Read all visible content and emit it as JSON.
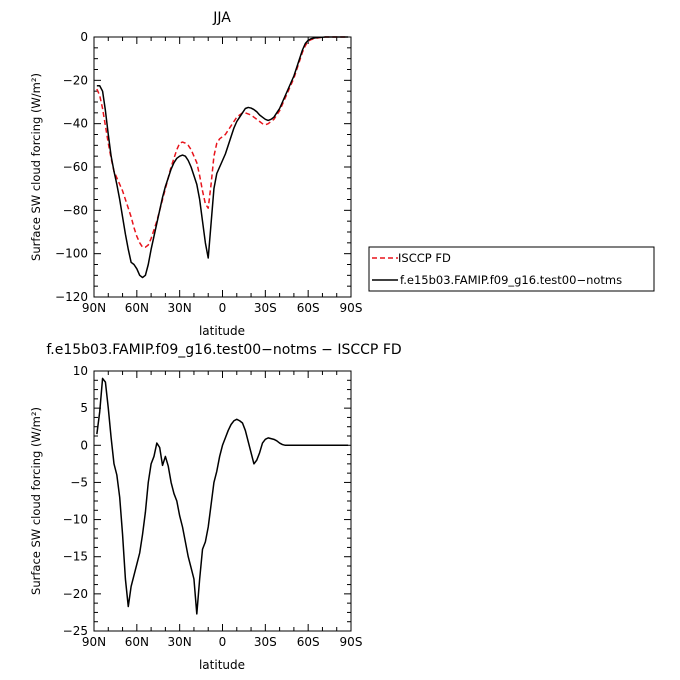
{
  "chart_data": [
    {
      "type": "line",
      "title": "JJA",
      "xlabel": "latitude",
      "ylabel": "Surface SW cloud forcing (W/m²)",
      "xlim": [
        90,
        -90
      ],
      "ylim": [
        -120,
        0
      ],
      "xticks": [
        90,
        60,
        30,
        0,
        -30,
        -60,
        -90
      ],
      "xtick_labels": [
        "90N",
        "60N",
        "30N",
        "0",
        "30S",
        "60S",
        "90S"
      ],
      "yticks": [
        0,
        -20,
        -40,
        -60,
        -80,
        -100,
        -120
      ],
      "ytick_labels": [
        "0",
        "−20",
        "−40",
        "−60",
        "−80",
        "−100",
        "−120"
      ],
      "legend": "right",
      "series": [
        {
          "name": "ISCCP FD",
          "color": "#e8141c",
          "dash": true,
          "x": [
            88,
            86,
            84,
            82,
            80,
            78,
            76,
            74,
            72,
            70,
            68,
            66,
            64,
            62,
            60,
            58,
            56,
            54,
            52,
            50,
            48,
            46,
            44,
            42,
            40,
            38,
            36,
            34,
            32,
            30,
            28,
            26,
            24,
            22,
            20,
            18,
            16,
            14,
            12,
            10,
            8,
            6,
            4,
            2,
            0,
            -2,
            -4,
            -6,
            -8,
            -10,
            -12,
            -14,
            -16,
            -18,
            -20,
            -22,
            -24,
            -26,
            -28,
            -30,
            -32,
            -34,
            -36,
            -38,
            -40,
            -42,
            -44,
            -46,
            -48,
            -50,
            -52,
            -54,
            -56,
            -58,
            -60,
            -62,
            -64,
            -66,
            -68,
            -70,
            -72,
            -74,
            -76,
            -78,
            -80,
            -82,
            -84,
            -86,
            -88
          ],
          "values": [
            -24,
            -27,
            -33,
            -41,
            -49,
            -56,
            -62,
            -65,
            -68,
            -71,
            -75,
            -79,
            -83,
            -88,
            -92,
            -95,
            -97,
            -97,
            -96,
            -93,
            -89,
            -85,
            -80,
            -75,
            -70,
            -65,
            -60,
            -56,
            -52,
            -49,
            -48.5,
            -49,
            -50,
            -52,
            -55,
            -58,
            -64,
            -71,
            -77,
            -79,
            -68,
            -55,
            -49,
            -47,
            -46,
            -45,
            -43,
            -41,
            -39,
            -37,
            -36,
            -35,
            -35,
            -35.5,
            -36,
            -37,
            -38,
            -39,
            -40,
            -40.5,
            -40,
            -39,
            -38,
            -36,
            -34,
            -31,
            -28,
            -25,
            -22,
            -19,
            -15,
            -11,
            -7,
            -4,
            -2,
            -1.2,
            -0.8,
            -0.5,
            -0.3,
            -0.1,
            0,
            0,
            0,
            0,
            0,
            0,
            0,
            0,
            0
          ]
        },
        {
          "name": "f.e15b03.FAMIP.f09_g16.test00−notms",
          "color": "#000000",
          "dash": false,
          "x": [
            88,
            86,
            84,
            82,
            80,
            78,
            76,
            74,
            72,
            70,
            68,
            66,
            64,
            62,
            60,
            58,
            56,
            54,
            52,
            50,
            48,
            46,
            44,
            42,
            40,
            38,
            36,
            34,
            32,
            30,
            28,
            26,
            24,
            22,
            20,
            18,
            16,
            14,
            12,
            10,
            8,
            6,
            4,
            2,
            0,
            -2,
            -4,
            -6,
            -8,
            -10,
            -12,
            -14,
            -16,
            -18,
            -20,
            -22,
            -24,
            -26,
            -28,
            -30,
            -32,
            -34,
            -36,
            -38,
            -40,
            -42,
            -44,
            -46,
            -48,
            -50,
            -52,
            -54,
            -56,
            -58,
            -60,
            -62,
            -64,
            -66,
            -68,
            -70,
            -72,
            -74,
            -76,
            -78,
            -80,
            -82,
            -84,
            -86,
            -88
          ],
          "values": [
            -22.5,
            -22.5,
            -25,
            -34,
            -45,
            -55,
            -62,
            -68,
            -75,
            -83,
            -91,
            -98,
            -104,
            -105,
            -107,
            -110,
            -111,
            -110,
            -105,
            -98,
            -92,
            -86,
            -80,
            -74,
            -69,
            -65,
            -61,
            -58,
            -56,
            -55,
            -54.5,
            -55,
            -57,
            -60,
            -64,
            -68,
            -75,
            -85,
            -95,
            -102,
            -86,
            -70,
            -63,
            -60,
            -57,
            -54,
            -50,
            -46,
            -42,
            -39,
            -37,
            -35,
            -33,
            -32.5,
            -32.8,
            -33.5,
            -34.5,
            -36,
            -37,
            -38,
            -38.5,
            -38,
            -37,
            -35,
            -33,
            -30,
            -27,
            -24,
            -21,
            -18,
            -14,
            -10,
            -6,
            -3,
            -1.5,
            -0.8,
            -0.5,
            -0.3,
            -0.2,
            -0.1,
            0,
            0,
            0,
            0,
            0,
            0,
            0,
            0,
            0
          ]
        }
      ]
    },
    {
      "type": "line",
      "title": "f.e15b03.FAMIP.f09_g16.test00−notms − ISCCP FD",
      "xlabel": "latitude",
      "ylabel": "Surface SW cloud forcing (W/m²)",
      "xlim": [
        90,
        -90
      ],
      "ylim": [
        -25,
        10
      ],
      "xticks": [
        90,
        60,
        30,
        0,
        -30,
        -60,
        -90
      ],
      "xtick_labels": [
        "90N",
        "60N",
        "30N",
        "0",
        "30S",
        "60S",
        "90S"
      ],
      "yticks": [
        10,
        5,
        0,
        -5,
        -10,
        -15,
        -20,
        -25
      ],
      "ytick_labels": [
        "10",
        "5",
        "0",
        "−5",
        "−10",
        "−15",
        "−20",
        "−25"
      ],
      "series": [
        {
          "color": "#000000",
          "x": [
            88,
            86,
            84,
            82,
            80,
            78,
            76,
            74,
            72,
            70,
            68,
            66,
            64,
            62,
            60,
            58,
            56,
            54,
            52,
            50,
            48,
            46,
            44,
            42,
            40,
            38,
            36,
            34,
            32,
            30,
            28,
            26,
            24,
            22,
            20,
            18,
            16,
            14,
            12,
            10,
            8,
            6,
            4,
            2,
            0,
            -2,
            -4,
            -6,
            -8,
            -10,
            -12,
            -14,
            -16,
            -18,
            -20,
            -22,
            -24,
            -26,
            -28,
            -30,
            -32,
            -34,
            -36,
            -38,
            -40,
            -42,
            -44,
            -46,
            -48,
            -50,
            -52,
            -54,
            -56,
            -58,
            -60,
            -62,
            -64,
            -66,
            -68,
            -70,
            -72,
            -74,
            -76,
            -78,
            -80,
            -82,
            -84,
            -86,
            -88
          ],
          "values": [
            1.5,
            4.5,
            9,
            8.5,
            5,
            1,
            -2.5,
            -4,
            -7,
            -12,
            -18,
            -21.7,
            -19,
            -17.5,
            -16,
            -14.5,
            -12,
            -9,
            -5,
            -2.5,
            -1.5,
            0.3,
            -0.3,
            -2.7,
            -1.5,
            -2.8,
            -5,
            -6.5,
            -7.5,
            -9.5,
            -11,
            -13,
            -15,
            -16.5,
            -18,
            -22.7,
            -18,
            -14,
            -13,
            -11,
            -8,
            -5,
            -3.5,
            -1.5,
            0,
            1,
            2,
            2.8,
            3.3,
            3.5,
            3.3,
            3,
            2,
            0.5,
            -1,
            -2.5,
            -2,
            -1,
            0.3,
            0.8,
            1,
            0.9,
            0.8,
            0.6,
            0.3,
            0.1,
            0,
            0,
            0,
            0,
            0,
            0,
            0,
            0,
            0,
            0,
            0,
            0,
            0,
            0,
            0,
            0,
            0,
            0,
            0,
            0,
            0,
            0,
            0
          ]
        }
      ]
    }
  ]
}
